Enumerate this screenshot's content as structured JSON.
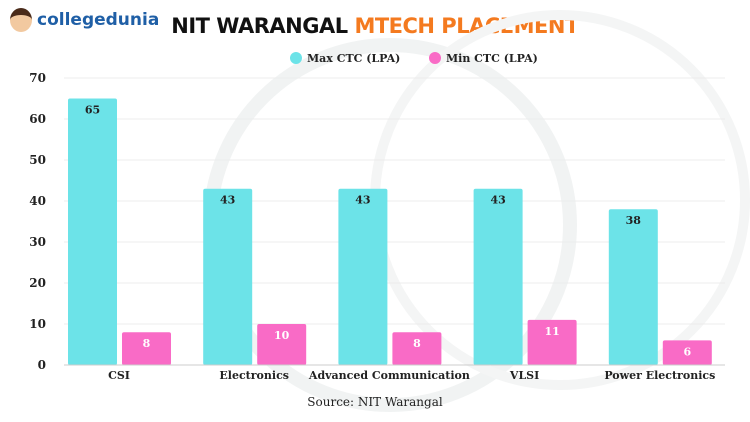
{
  "brand": "collegedunia",
  "title": {
    "part1": "NIT WARANGAL",
    "part2": "MTECH PLACEMENT"
  },
  "source": "Source: NIT Warangal",
  "colors": {
    "max": "#6ce3e8",
    "min": "#f96bc6",
    "accent": "#f47a1f"
  },
  "chart_data": {
    "type": "bar",
    "categories": [
      "CSI",
      "Electronics",
      "Advanced Communication",
      "VLSI",
      "Power Electronics"
    ],
    "series": [
      {
        "name": "Max CTC (LPA)",
        "values": [
          65,
          43,
          43,
          43,
          38
        ]
      },
      {
        "name": "Min CTC (LPA)",
        "values": [
          8,
          10,
          8,
          11,
          6
        ]
      }
    ],
    "yticks": [
      0,
      10,
      20,
      30,
      40,
      50,
      60,
      70
    ],
    "ylim": [
      0,
      70
    ],
    "grid": true,
    "legend": "top-center",
    "data_labels": true
  }
}
